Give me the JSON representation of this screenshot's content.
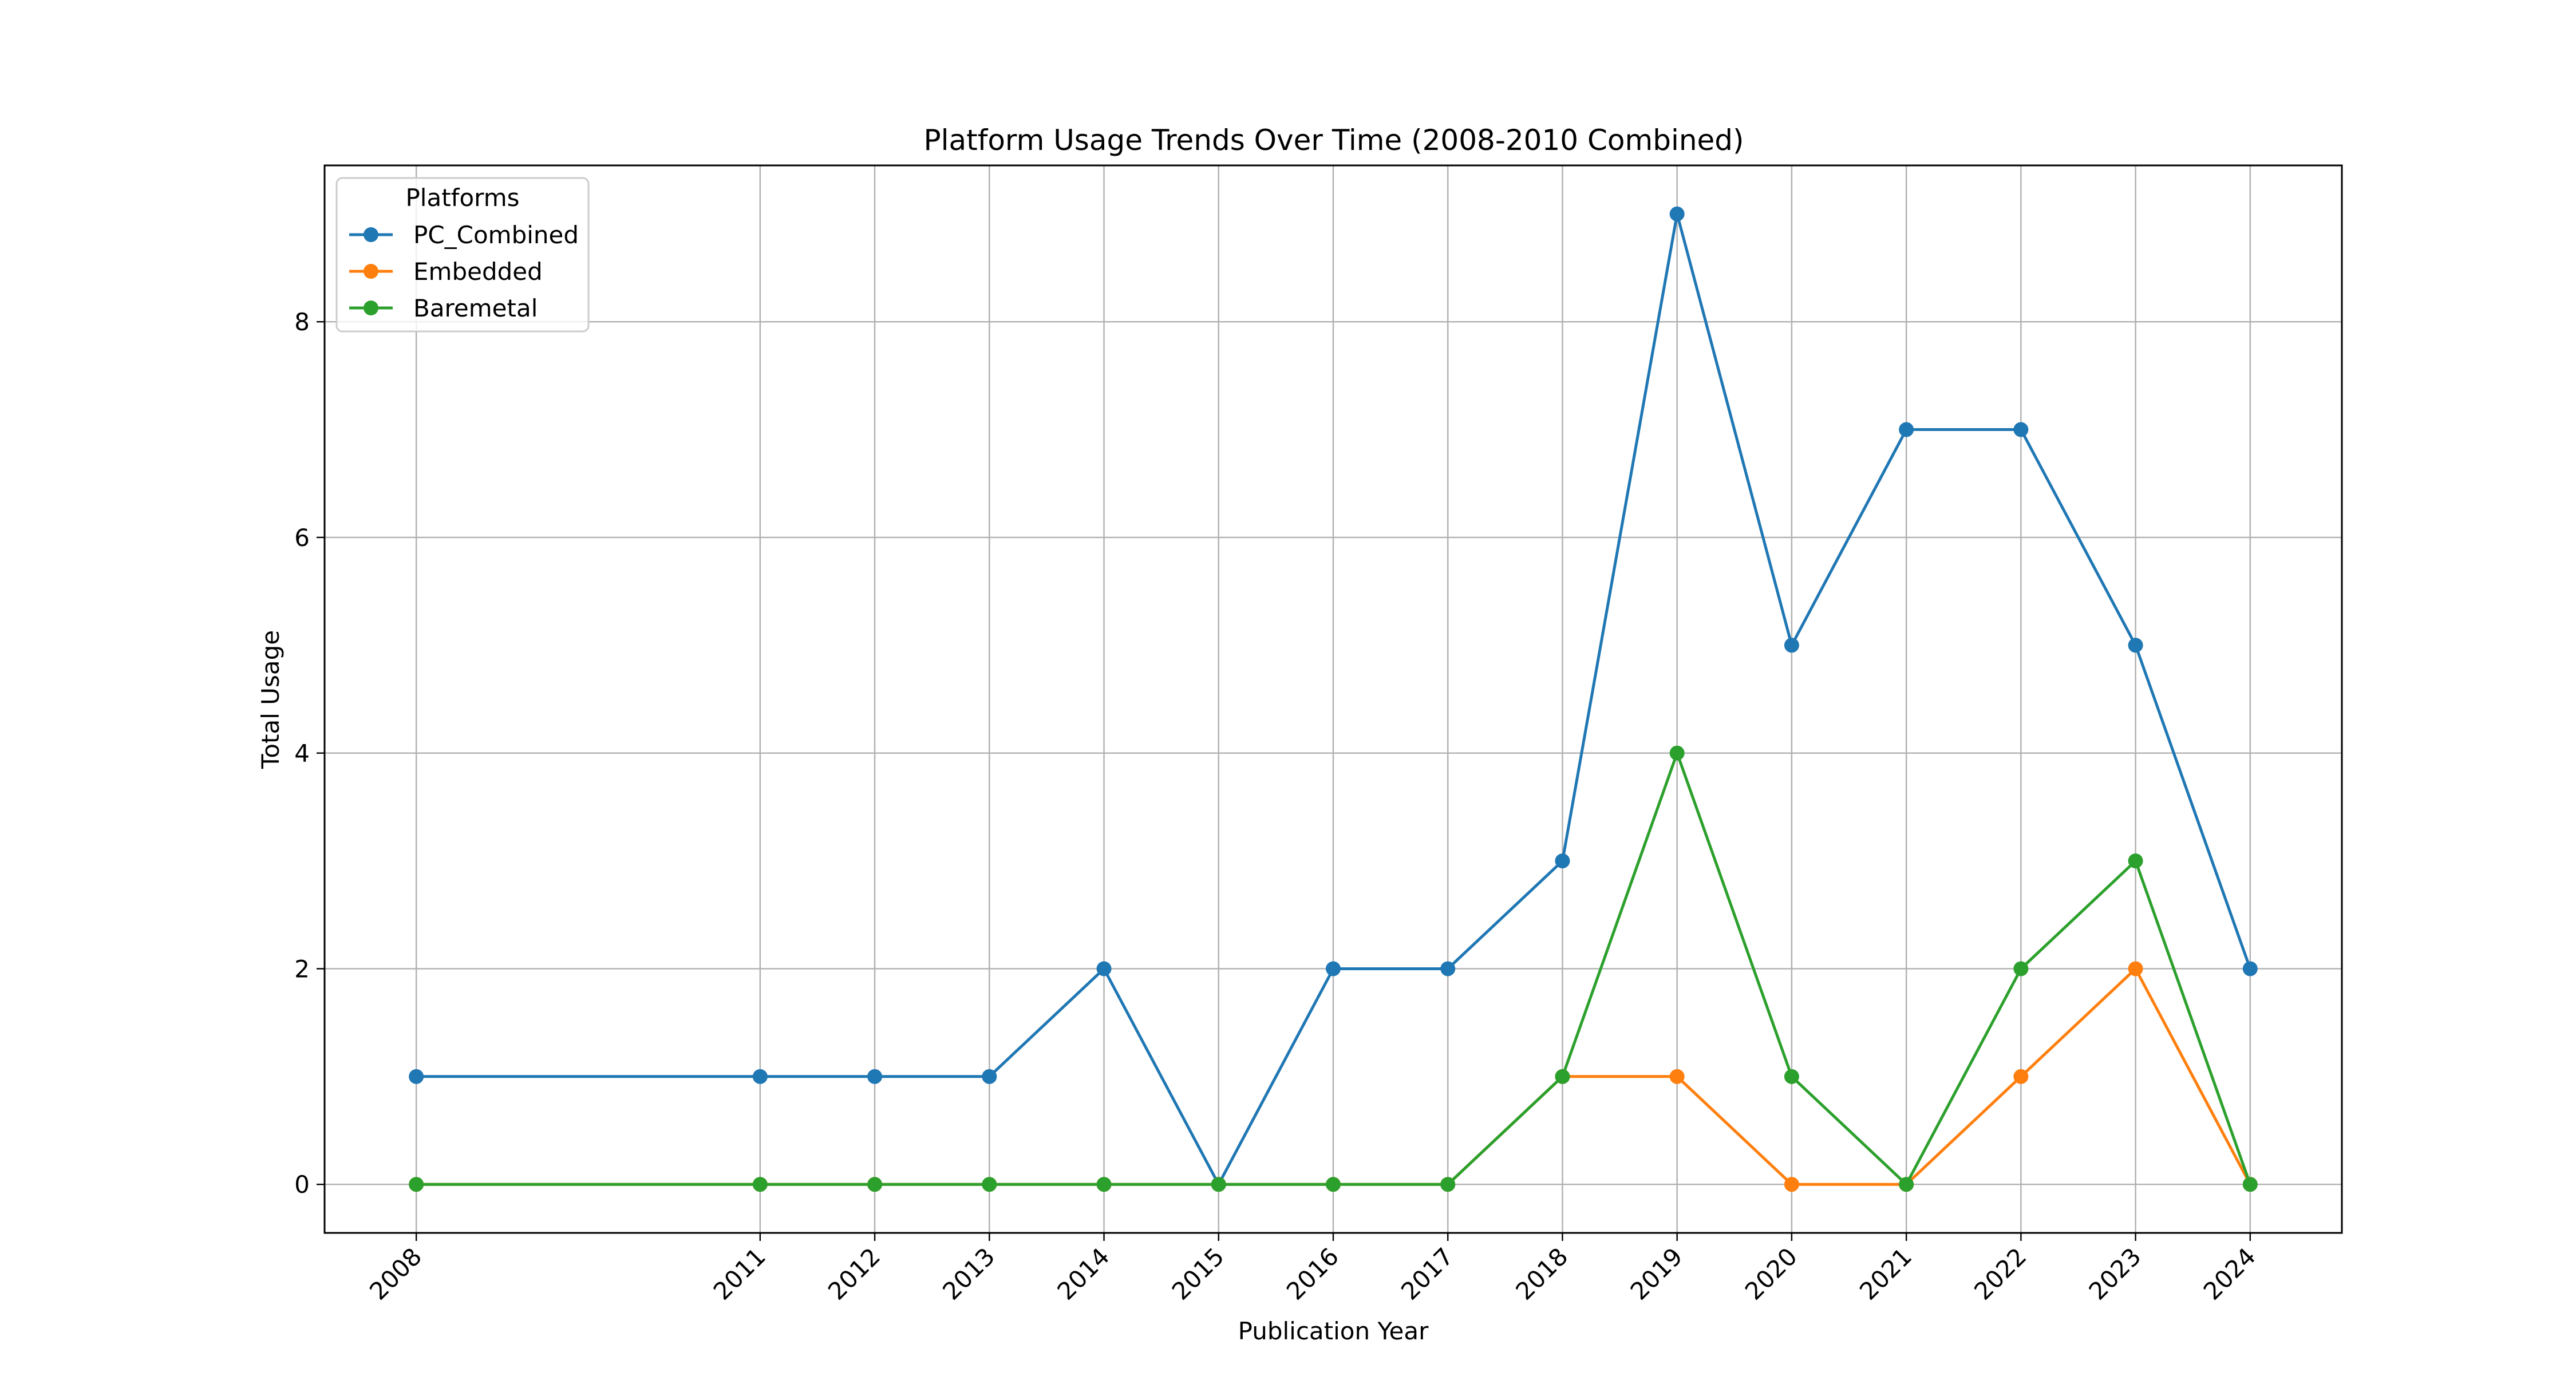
{
  "chart_data": {
    "type": "line",
    "title": "Platform Usage Trends Over Time (2008-2010 Combined)",
    "xlabel": "Publication Year",
    "ylabel": "Total Usage",
    "x": [
      2008,
      2011,
      2012,
      2013,
      2014,
      2015,
      2016,
      2017,
      2018,
      2019,
      2020,
      2021,
      2022,
      2023,
      2024
    ],
    "xlim": [
      2007.2,
      2024.8
    ],
    "ylim": [
      -0.45,
      9.45
    ],
    "yticks": [
      0,
      2,
      4,
      6,
      8
    ],
    "grid": true,
    "legend": {
      "title": "Platforms",
      "placement": "top-left"
    },
    "series": [
      {
        "name": "PC_Combined",
        "color": "#1f77b4",
        "values": [
          1,
          1,
          1,
          1,
          2,
          0,
          2,
          2,
          3,
          9,
          5,
          7,
          7,
          5,
          2
        ]
      },
      {
        "name": "Embedded",
        "color": "#ff7f0e",
        "values": [
          0,
          0,
          0,
          0,
          0,
          0,
          0,
          0,
          1,
          1,
          0,
          0,
          1,
          2,
          0
        ]
      },
      {
        "name": "Baremetal",
        "color": "#2ca02c",
        "values": [
          0,
          0,
          0,
          0,
          0,
          0,
          0,
          0,
          1,
          4,
          1,
          0,
          2,
          3,
          0
        ]
      }
    ]
  }
}
